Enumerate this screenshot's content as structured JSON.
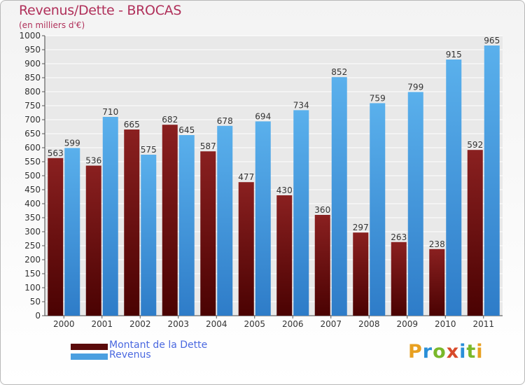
{
  "header": {
    "title": "Revenus/Dette - BROCAS",
    "subtitle": "(en milliers d'€)"
  },
  "chart_data": {
    "type": "bar",
    "categories": [
      "2000",
      "2001",
      "2002",
      "2003",
      "2004",
      "2005",
      "2006",
      "2007",
      "2008",
      "2009",
      "2010",
      "2011"
    ],
    "series": [
      {
        "name": "Montant de la Dette",
        "color": "#7a1616",
        "values": [
          563,
          536,
          665,
          682,
          587,
          477,
          430,
          360,
          297,
          263,
          238,
          592
        ]
      },
      {
        "name": "Revenus",
        "color": "#4a9fe0",
        "values": [
          599,
          710,
          575,
          645,
          678,
          694,
          734,
          852,
          759,
          799,
          915,
          965
        ]
      }
    ],
    "ylim": [
      0,
      1000
    ],
    "ytick_step": 50,
    "grid": true,
    "legend_position": "bottom-left"
  },
  "legend": {
    "items": [
      {
        "label": "Montant de la Dette",
        "color": "#5a0a0a"
      },
      {
        "label": "Revenus",
        "color": "#4a9fe0"
      }
    ]
  },
  "logo": {
    "text": "Proxiti"
  }
}
